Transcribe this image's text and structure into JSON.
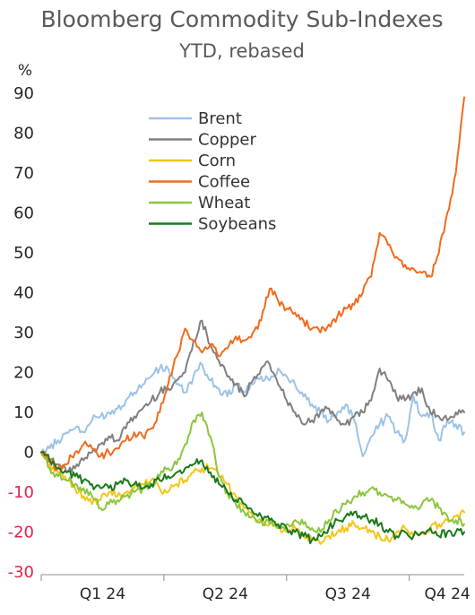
{
  "chart_data": {
    "type": "line",
    "title": "Bloomberg Commodity Sub-Indexes",
    "subtitle": "YTD, rebased",
    "unit_label": "%",
    "ylim": [
      -30,
      90
    ],
    "yticks": [
      "90",
      "80",
      "70",
      "60",
      "50",
      "40",
      "30",
      "20",
      "10",
      "0",
      "-10",
      "-20",
      "-30"
    ],
    "ytick_values": [
      90,
      80,
      70,
      60,
      50,
      40,
      30,
      20,
      10,
      0,
      -10,
      -20,
      -30
    ],
    "xlim": [
      0,
      100
    ],
    "xticks": [
      "Q1 24",
      "Q2 24",
      "Q3 24",
      "Q4 24"
    ],
    "xtick_positions": [
      14.5,
      43.5,
      72.5,
      96
    ],
    "legend_placement": "upper-center",
    "grid": false,
    "series": [
      {
        "name": "Brent",
        "color": "#9dc3e6",
        "points": [
          [
            0,
            0
          ],
          [
            2,
            1
          ],
          [
            4,
            3
          ],
          [
            6,
            5
          ],
          [
            8,
            6
          ],
          [
            10,
            5
          ],
          [
            12,
            8
          ],
          [
            14,
            9
          ],
          [
            16,
            10
          ],
          [
            18,
            11
          ],
          [
            20,
            13
          ],
          [
            22,
            15
          ],
          [
            24,
            17
          ],
          [
            26,
            19
          ],
          [
            28,
            21
          ],
          [
            30,
            21
          ],
          [
            32,
            17
          ],
          [
            34,
            15
          ],
          [
            36,
            19
          ],
          [
            38,
            22
          ],
          [
            40,
            18
          ],
          [
            42,
            16
          ],
          [
            44,
            14
          ],
          [
            46,
            17
          ],
          [
            48,
            15
          ],
          [
            50,
            17
          ],
          [
            52,
            19
          ],
          [
            54,
            18
          ],
          [
            56,
            21
          ],
          [
            58,
            19
          ],
          [
            60,
            17
          ],
          [
            62,
            14
          ],
          [
            64,
            12
          ],
          [
            66,
            10
          ],
          [
            68,
            8
          ],
          [
            70,
            10
          ],
          [
            72,
            12
          ],
          [
            74,
            8
          ],
          [
            76,
            -1
          ],
          [
            78,
            4
          ],
          [
            80,
            7
          ],
          [
            82,
            9
          ],
          [
            84,
            5
          ],
          [
            86,
            3
          ],
          [
            88,
            14
          ],
          [
            90,
            9
          ],
          [
            92,
            10
          ],
          [
            94,
            3
          ],
          [
            96,
            8
          ],
          [
            98,
            7
          ],
          [
            100,
            5
          ]
        ]
      },
      {
        "name": "Copper",
        "color": "#808080",
        "points": [
          [
            0,
            0
          ],
          [
            2,
            -2
          ],
          [
            4,
            -3
          ],
          [
            6,
            -5
          ],
          [
            8,
            -4
          ],
          [
            10,
            -2
          ],
          [
            12,
            0
          ],
          [
            14,
            2
          ],
          [
            16,
            4
          ],
          [
            18,
            3
          ],
          [
            20,
            6
          ],
          [
            22,
            9
          ],
          [
            24,
            11
          ],
          [
            26,
            13
          ],
          [
            28,
            15
          ],
          [
            30,
            16
          ],
          [
            32,
            18
          ],
          [
            34,
            20
          ],
          [
            36,
            28
          ],
          [
            38,
            33
          ],
          [
            40,
            27
          ],
          [
            42,
            23
          ],
          [
            44,
            19
          ],
          [
            46,
            17
          ],
          [
            48,
            14
          ],
          [
            50,
            18
          ],
          [
            52,
            21
          ],
          [
            54,
            22
          ],
          [
            56,
            17
          ],
          [
            58,
            13
          ],
          [
            60,
            10
          ],
          [
            62,
            7
          ],
          [
            64,
            8
          ],
          [
            66,
            10
          ],
          [
            68,
            11
          ],
          [
            70,
            8
          ],
          [
            72,
            7
          ],
          [
            74,
            9
          ],
          [
            76,
            10
          ],
          [
            78,
            13
          ],
          [
            80,
            21
          ],
          [
            82,
            18
          ],
          [
            84,
            14
          ],
          [
            86,
            13
          ],
          [
            88,
            15
          ],
          [
            90,
            16
          ],
          [
            92,
            10
          ],
          [
            94,
            9
          ],
          [
            96,
            8
          ],
          [
            98,
            10
          ],
          [
            100,
            10
          ]
        ]
      },
      {
        "name": "Corn",
        "color": "#f5c518",
        "points": [
          [
            0,
            0
          ],
          [
            2,
            -3
          ],
          [
            4,
            -5
          ],
          [
            6,
            -7
          ],
          [
            8,
            -9
          ],
          [
            10,
            -11
          ],
          [
            12,
            -13
          ],
          [
            14,
            -12
          ],
          [
            16,
            -10
          ],
          [
            18,
            -11
          ],
          [
            20,
            -10
          ],
          [
            22,
            -9
          ],
          [
            24,
            -8
          ],
          [
            26,
            -7
          ],
          [
            28,
            -9
          ],
          [
            30,
            -10
          ],
          [
            32,
            -8
          ],
          [
            34,
            -7
          ],
          [
            36,
            -5
          ],
          [
            38,
            -4
          ],
          [
            40,
            -4
          ],
          [
            42,
            -6
          ],
          [
            44,
            -8
          ],
          [
            46,
            -11
          ],
          [
            48,
            -14
          ],
          [
            50,
            -16
          ],
          [
            52,
            -17
          ],
          [
            54,
            -18
          ],
          [
            56,
            -19
          ],
          [
            58,
            -20
          ],
          [
            60,
            -19
          ],
          [
            62,
            -21
          ],
          [
            64,
            -22
          ],
          [
            66,
            -23
          ],
          [
            68,
            -21
          ],
          [
            70,
            -20
          ],
          [
            72,
            -19
          ],
          [
            74,
            -18
          ],
          [
            76,
            -19
          ],
          [
            78,
            -20
          ],
          [
            80,
            -21
          ],
          [
            82,
            -22
          ],
          [
            84,
            -20
          ],
          [
            86,
            -19
          ],
          [
            88,
            -21
          ],
          [
            90,
            -20
          ],
          [
            92,
            -19
          ],
          [
            94,
            -18
          ],
          [
            96,
            -17
          ],
          [
            98,
            -16
          ],
          [
            100,
            -15
          ]
        ]
      },
      {
        "name": "Coffee",
        "color": "#f26b1d",
        "points": [
          [
            0,
            0
          ],
          [
            2,
            -2
          ],
          [
            4,
            -4
          ],
          [
            6,
            -3
          ],
          [
            8,
            0
          ],
          [
            10,
            2
          ],
          [
            12,
            1
          ],
          [
            14,
            -1
          ],
          [
            16,
            0
          ],
          [
            18,
            1
          ],
          [
            20,
            3
          ],
          [
            22,
            5
          ],
          [
            24,
            4
          ],
          [
            26,
            6
          ],
          [
            28,
            10
          ],
          [
            30,
            17
          ],
          [
            32,
            24
          ],
          [
            34,
            31
          ],
          [
            36,
            28
          ],
          [
            38,
            25
          ],
          [
            40,
            27
          ],
          [
            42,
            24
          ],
          [
            44,
            26
          ],
          [
            46,
            29
          ],
          [
            48,
            28
          ],
          [
            50,
            30
          ],
          [
            52,
            33
          ],
          [
            54,
            41
          ],
          [
            56,
            38
          ],
          [
            58,
            36
          ],
          [
            60,
            35
          ],
          [
            62,
            33
          ],
          [
            64,
            31
          ],
          [
            66,
            30
          ],
          [
            68,
            32
          ],
          [
            70,
            34
          ],
          [
            72,
            36
          ],
          [
            74,
            37
          ],
          [
            76,
            40
          ],
          [
            78,
            44
          ],
          [
            80,
            55
          ],
          [
            82,
            52
          ],
          [
            84,
            49
          ],
          [
            86,
            47
          ],
          [
            88,
            46
          ],
          [
            90,
            45
          ],
          [
            92,
            44
          ],
          [
            94,
            50
          ],
          [
            96,
            60
          ],
          [
            98,
            70
          ],
          [
            100,
            89
          ]
        ]
      },
      {
        "name": "Wheat",
        "color": "#8cc63f",
        "points": [
          [
            0,
            0
          ],
          [
            2,
            -4
          ],
          [
            4,
            -6
          ],
          [
            6,
            -7
          ],
          [
            8,
            -8
          ],
          [
            10,
            -9
          ],
          [
            12,
            -11
          ],
          [
            14,
            -14
          ],
          [
            16,
            -13
          ],
          [
            18,
            -12
          ],
          [
            20,
            -11
          ],
          [
            22,
            -10
          ],
          [
            24,
            -9
          ],
          [
            26,
            -8
          ],
          [
            28,
            -6
          ],
          [
            30,
            -4
          ],
          [
            32,
            -3
          ],
          [
            34,
            2
          ],
          [
            36,
            8
          ],
          [
            38,
            10
          ],
          [
            40,
            4
          ],
          [
            42,
            -6
          ],
          [
            44,
            -10
          ],
          [
            46,
            -13
          ],
          [
            48,
            -15
          ],
          [
            50,
            -16
          ],
          [
            52,
            -17
          ],
          [
            54,
            -18
          ],
          [
            56,
            -19
          ],
          [
            58,
            -18
          ],
          [
            60,
            -17
          ],
          [
            62,
            -18
          ],
          [
            64,
            -19
          ],
          [
            66,
            -20
          ],
          [
            68,
            -17
          ],
          [
            70,
            -15
          ],
          [
            72,
            -13
          ],
          [
            74,
            -11
          ],
          [
            76,
            -10
          ],
          [
            78,
            -9
          ],
          [
            80,
            -10
          ],
          [
            82,
            -11
          ],
          [
            84,
            -12
          ],
          [
            86,
            -13
          ],
          [
            88,
            -14
          ],
          [
            90,
            -13
          ],
          [
            92,
            -12
          ],
          [
            94,
            -14
          ],
          [
            96,
            -16
          ],
          [
            98,
            -17
          ],
          [
            100,
            -18
          ]
        ]
      },
      {
        "name": "Soybeans",
        "color": "#1a7a1a",
        "points": [
          [
            0,
            0
          ],
          [
            2,
            -2
          ],
          [
            4,
            -4
          ],
          [
            6,
            -5
          ],
          [
            8,
            -6
          ],
          [
            10,
            -7
          ],
          [
            12,
            -8
          ],
          [
            14,
            -9
          ],
          [
            16,
            -9
          ],
          [
            18,
            -8
          ],
          [
            20,
            -7
          ],
          [
            22,
            -8
          ],
          [
            24,
            -9
          ],
          [
            26,
            -8
          ],
          [
            28,
            -7
          ],
          [
            30,
            -6
          ],
          [
            32,
            -5
          ],
          [
            34,
            -4
          ],
          [
            36,
            -3
          ],
          [
            38,
            -2
          ],
          [
            40,
            -5
          ],
          [
            42,
            -8
          ],
          [
            44,
            -10
          ],
          [
            46,
            -12
          ],
          [
            48,
            -13
          ],
          [
            50,
            -15
          ],
          [
            52,
            -16
          ],
          [
            54,
            -17
          ],
          [
            56,
            -18
          ],
          [
            58,
            -19
          ],
          [
            60,
            -20
          ],
          [
            62,
            -21
          ],
          [
            64,
            -22
          ],
          [
            66,
            -21
          ],
          [
            68,
            -19
          ],
          [
            70,
            -17
          ],
          [
            72,
            -16
          ],
          [
            74,
            -15
          ],
          [
            76,
            -16
          ],
          [
            78,
            -17
          ],
          [
            80,
            -18
          ],
          [
            82,
            -20
          ],
          [
            84,
            -21
          ],
          [
            86,
            -20
          ],
          [
            88,
            -21
          ],
          [
            90,
            -20
          ],
          [
            92,
            -19
          ],
          [
            94,
            -21
          ],
          [
            96,
            -20
          ],
          [
            98,
            -20
          ],
          [
            100,
            -20
          ]
        ]
      }
    ]
  }
}
